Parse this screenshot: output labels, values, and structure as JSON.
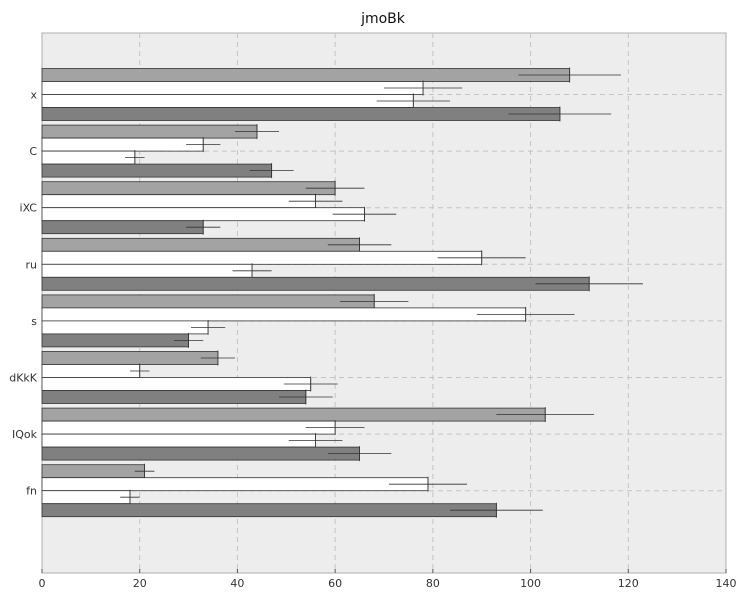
{
  "chart_data": {
    "type": "bar",
    "orientation": "horizontal",
    "title": "jmoBk",
    "xlabel": "",
    "ylabel": "",
    "xlim": [
      0,
      140
    ],
    "xticks": [
      0,
      20,
      40,
      60,
      80,
      100,
      120,
      140
    ],
    "grid": true,
    "legend": "none",
    "categories": [
      "x",
      "C",
      "iXC",
      "ru",
      "s",
      "dKkK",
      "IQok",
      "fn"
    ],
    "series": [
      {
        "color": "#a3a3a3",
        "values": [
          108,
          44,
          60,
          65,
          68,
          36,
          103,
          21
        ],
        "errors": [
          10.5,
          4.5,
          6,
          6.5,
          7,
          3.5,
          10,
          2
        ]
      },
      {
        "color": "#ffffff",
        "values": [
          78,
          33,
          56,
          90,
          99,
          20,
          60,
          79
        ],
        "errors": [
          8,
          3.5,
          5.5,
          9,
          10,
          2,
          6,
          8
        ]
      },
      {
        "color": "#ffffff",
        "values": [
          76,
          19,
          66,
          43,
          34,
          55,
          56,
          18
        ],
        "errors": [
          7.5,
          2,
          6.5,
          4,
          3.5,
          5.5,
          5.5,
          2
        ]
      },
      {
        "color": "#808080",
        "values": [
          106,
          47,
          33,
          112,
          30,
          54,
          65,
          93
        ],
        "errors": [
          10.5,
          4.5,
          3.5,
          11,
          3,
          5.5,
          6.5,
          9.5
        ]
      }
    ]
  }
}
